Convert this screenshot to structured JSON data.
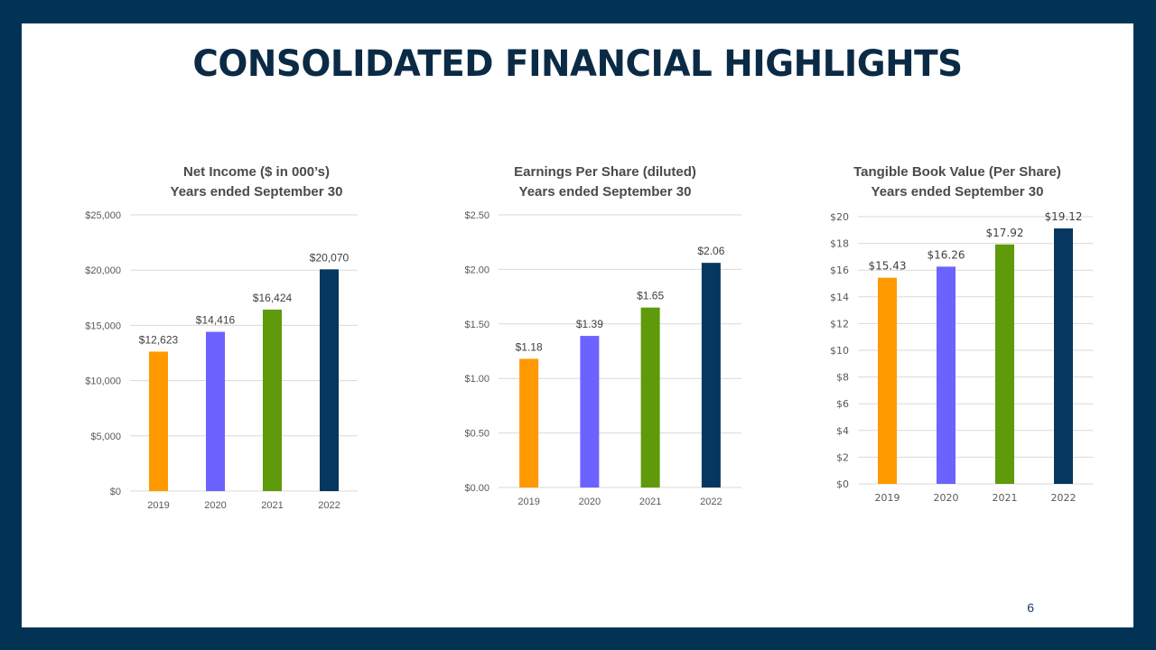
{
  "slide": {
    "title": "CONSOLIDATED FINANCIAL HIGHLIGHTS",
    "page_number": "6"
  },
  "colors": {
    "background_frame": "#033354",
    "title": "#0b2a45",
    "bar_2019": "#ff9900",
    "bar_2020": "#6c63ff",
    "bar_2021": "#5e9a0a",
    "bar_2022": "#063760"
  },
  "chart_data": [
    {
      "type": "bar",
      "title_line1": "Net Income ($ in 000’s)",
      "title_line2": "Years ended September 30",
      "categories": [
        "2019",
        "2020",
        "2021",
        "2022"
      ],
      "values": [
        12623,
        14416,
        16424,
        20070
      ],
      "data_labels": [
        "$12,623",
        "$14,416",
        "$16,424",
        "$20,070"
      ],
      "ylim": [
        0,
        25000
      ],
      "yticks": [
        0,
        5000,
        10000,
        15000,
        20000,
        25000
      ],
      "ytick_labels": [
        "$0",
        "$5,000",
        "$10,000",
        "$15,000",
        "$20,000",
        "$25,000"
      ],
      "grid": true
    },
    {
      "type": "bar",
      "title_line1": "Earnings Per Share (diluted)",
      "title_line2": "Years ended September 30",
      "categories": [
        "2019",
        "2020",
        "2021",
        "2022"
      ],
      "values": [
        1.18,
        1.39,
        1.65,
        2.06
      ],
      "data_labels": [
        "$1.18",
        "$1.39",
        "$1.65",
        "$2.06"
      ],
      "ylim": [
        0,
        2.5
      ],
      "yticks": [
        0,
        0.5,
        1.0,
        1.5,
        2.0,
        2.5
      ],
      "ytick_labels": [
        "$0.00",
        "$0.50",
        "$1.00",
        "$1.50",
        "$2.00",
        "$2.50"
      ],
      "grid": true
    },
    {
      "type": "bar",
      "title_line1": "Tangible Book Value (Per Share)",
      "title_line2": "Years ended September 30",
      "categories": [
        "2019",
        "2020",
        "2021",
        "2022"
      ],
      "values": [
        15.43,
        16.26,
        17.92,
        19.12
      ],
      "data_labels": [
        "$15.43",
        "$16.26",
        "$17.92",
        "$19.12"
      ],
      "ylim": [
        0,
        20
      ],
      "yticks": [
        0,
        2,
        4,
        6,
        8,
        10,
        12,
        14,
        16,
        18,
        20
      ],
      "ytick_labels": [
        "$0",
        "$2",
        "$4",
        "$6",
        "$8",
        "$10",
        "$12",
        "$14",
        "$16",
        "$18",
        "$20"
      ],
      "grid": true
    }
  ]
}
